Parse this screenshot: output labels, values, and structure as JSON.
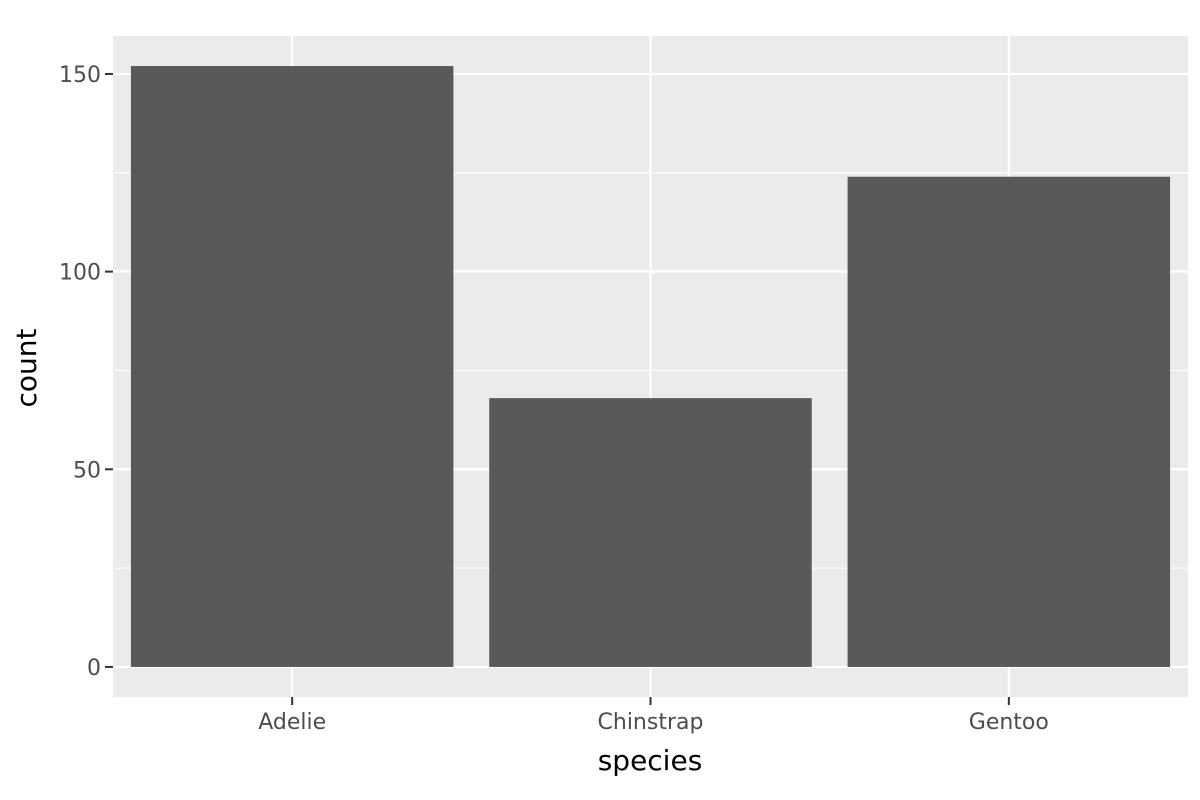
{
  "chart_data": {
    "type": "bar",
    "categories": [
      "Adelie",
      "Chinstrap",
      "Gentoo"
    ],
    "values": [
      152,
      68,
      124
    ],
    "xlabel": "species",
    "ylabel": "count",
    "ylim": [
      -7.6,
      159.6
    ],
    "yticks": [
      0,
      50,
      100,
      150
    ],
    "grid": true,
    "colors": {
      "panel_background": "#ebebeb",
      "grid": "#ffffff",
      "bar_fill": "#595959",
      "tick_text": "#4d4d4d",
      "axis_title_text": "#000000",
      "tick_mark": "#333333"
    }
  }
}
